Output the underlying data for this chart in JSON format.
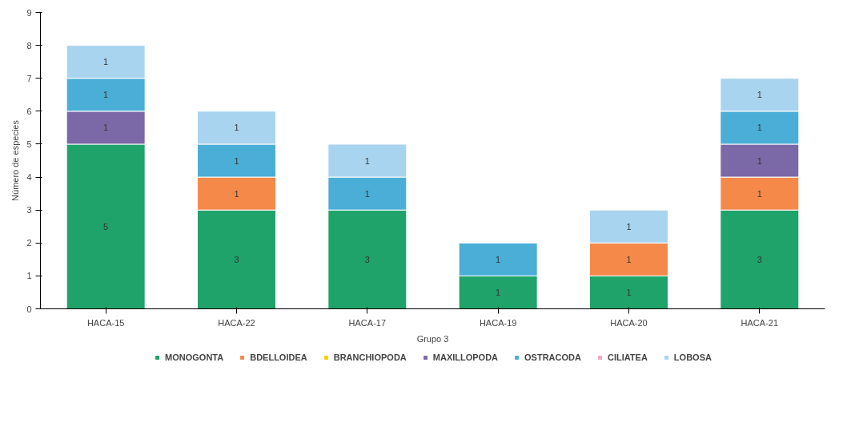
{
  "chart_data": {
    "type": "bar",
    "stacked": true,
    "xlabel": "Grupo 3",
    "ylabel": "Número de especies",
    "categories": [
      "HACA-15",
      "HACA-22",
      "HACA-17",
      "HACA-19",
      "HACA-20",
      "HACA-21"
    ],
    "series": [
      {
        "name": "MONOGONTA",
        "color": "#1fa36a",
        "values": [
          5,
          3,
          3,
          1,
          1,
          3
        ]
      },
      {
        "name": "BDELLOIDEA",
        "color": "#f5894a",
        "values": [
          null,
          1,
          null,
          null,
          1,
          1
        ]
      },
      {
        "name": "BRANCHIOPODA",
        "color": "#f5d000",
        "values": [
          null,
          null,
          null,
          null,
          null,
          null
        ]
      },
      {
        "name": "MAXILLOPODA",
        "color": "#7b68a6",
        "values": [
          1,
          null,
          null,
          null,
          null,
          1
        ]
      },
      {
        "name": "OSTRACODA",
        "color": "#4aaed6",
        "values": [
          1,
          1,
          1,
          1,
          null,
          1
        ]
      },
      {
        "name": "CILIATEA",
        "color": "#f4a6c0",
        "values": [
          null,
          null,
          null,
          null,
          null,
          null
        ]
      },
      {
        "name": "LOBOSA",
        "color": "#a9d4f0",
        "values": [
          1,
          1,
          1,
          null,
          1,
          1
        ]
      }
    ],
    "ylim": [
      0,
      9
    ],
    "yticks": [
      0,
      1,
      2,
      3,
      4,
      5,
      6,
      7,
      8,
      9
    ],
    "grid": false,
    "legend": "bottom",
    "data_labels": true
  }
}
